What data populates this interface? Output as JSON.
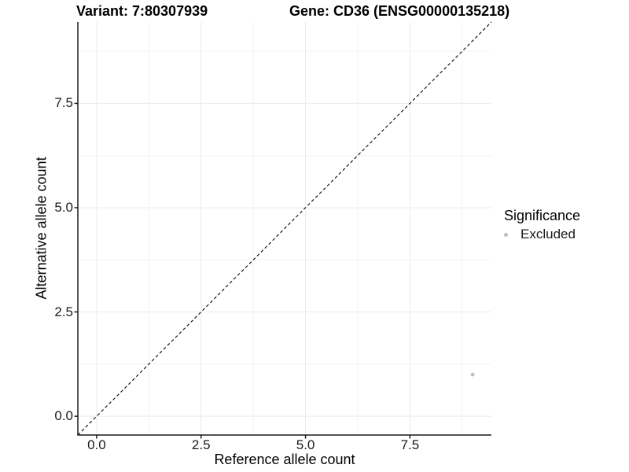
{
  "titles": {
    "variant": "Variant: 7:80307939",
    "gene": "Gene: CD36 (ENSG00000135218)"
  },
  "chart_data": {
    "type": "scatter",
    "xlabel": "Reference allele count",
    "ylabel": "Alternative allele count",
    "xlim": [
      -0.45,
      9.45
    ],
    "ylim": [
      -0.45,
      9.45
    ],
    "x_ticks": [
      0.0,
      2.5,
      5.0,
      7.5
    ],
    "x_tick_labels": [
      "0.0",
      "2.5",
      "5.0",
      "7.5"
    ],
    "y_ticks": [
      0.0,
      2.5,
      5.0,
      7.5
    ],
    "y_tick_labels": [
      "0.0",
      "2.5",
      "5.0",
      "7.5"
    ],
    "minor_ticks": [
      1.25,
      3.75,
      6.25,
      8.75
    ],
    "grid": true,
    "reference_line": {
      "type": "identity",
      "slope": 1,
      "intercept": 0,
      "style": "dashed",
      "color": "#1a1a1a"
    },
    "series": [
      {
        "name": "Excluded",
        "color": "#bdbdbd",
        "points": [
          {
            "x": 9,
            "y": 1
          }
        ]
      }
    ],
    "legend": {
      "title": "Significance",
      "position": "right",
      "items": [
        {
          "label": "Excluded",
          "color": "#bdbdbd"
        }
      ]
    },
    "colors": {
      "major_grid": "#ebebeb",
      "minor_grid": "#f3f3f3",
      "axis_line": "#1a1a1a",
      "tick_mark": "#1a1a1a",
      "point": "#bdbdbd"
    }
  }
}
